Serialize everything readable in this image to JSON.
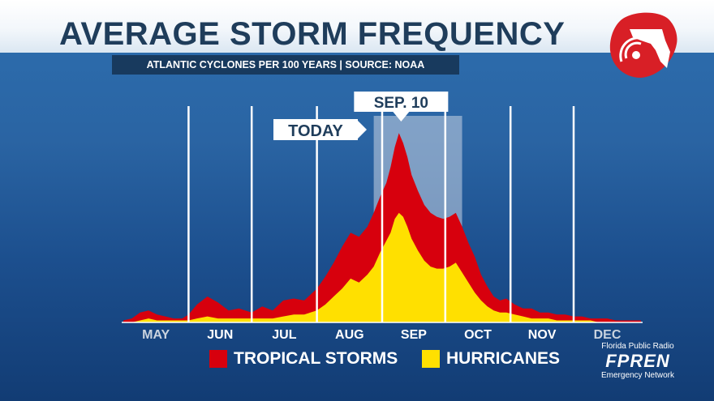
{
  "header": {
    "title": "AVERAGE STORM FREQUENCY",
    "subtitle": "ATLANTIC CYCLONES PER 100 YEARS | SOURCE: NOAA"
  },
  "colors": {
    "tropical_storms": "#d7000d",
    "hurricanes": "#ffe000",
    "highlight": "#c8d4e3"
  },
  "chart_data": {
    "type": "area",
    "title": "AVERAGE STORM FREQUENCY",
    "subtitle": "ATLANTIC CYCLONES PER 100 YEARS | SOURCE: NOAA",
    "xlabel": "",
    "ylabel": "",
    "months": [
      "MAY",
      "JUN",
      "JUL",
      "AUG",
      "SEP",
      "OCT",
      "NOV",
      "DEC"
    ],
    "x_unit": "day of season (0 = May 1)",
    "ylim": [
      0,
      100
    ],
    "x": [
      0,
      4,
      8,
      12,
      16,
      20,
      24,
      28,
      31,
      35,
      40,
      45,
      50,
      55,
      61,
      66,
      71,
      76,
      81,
      86,
      92,
      96,
      100,
      104,
      108,
      112,
      116,
      119,
      122,
      125,
      127,
      129,
      131,
      133,
      135,
      137,
      140,
      143,
      146,
      149,
      152,
      155,
      158,
      161,
      164,
      167,
      170,
      173,
      176,
      179,
      182,
      186,
      190,
      194,
      198,
      202,
      206,
      210,
      214,
      218,
      222,
      226,
      230,
      234,
      238,
      242,
      246
    ],
    "series": [
      {
        "name": "TROPICAL STORMS",
        "values": [
          1,
          2,
          5,
          6,
          4,
          3,
          2,
          2,
          4,
          9,
          13,
          10,
          6,
          7,
          5,
          8,
          6,
          11,
          12,
          11,
          17,
          23,
          30,
          38,
          45,
          43,
          48,
          55,
          63,
          70,
          78,
          88,
          95,
          90,
          83,
          74,
          66,
          59,
          55,
          53,
          52,
          53,
          55,
          48,
          40,
          33,
          24,
          18,
          13,
          11,
          12,
          9,
          7,
          7,
          5,
          5,
          4,
          4,
          3,
          3,
          2,
          2,
          2,
          1,
          1,
          1,
          1
        ]
      },
      {
        "name": "HURRICANES",
        "values": [
          0,
          0,
          1,
          2,
          1,
          1,
          1,
          1,
          1,
          2,
          3,
          2,
          2,
          2,
          2,
          2,
          2,
          3,
          4,
          4,
          6,
          9,
          13,
          17,
          22,
          20,
          24,
          28,
          35,
          41,
          45,
          52,
          55,
          53,
          48,
          42,
          36,
          31,
          28,
          27,
          27,
          28,
          30,
          25,
          20,
          15,
          11,
          8,
          6,
          5,
          5,
          4,
          3,
          2,
          2,
          2,
          1,
          1,
          1,
          1,
          1,
          0,
          0,
          0,
          0,
          0,
          0
        ]
      }
    ],
    "highlight_band": [
      119,
      161
    ],
    "annotations": [
      {
        "label": "SEP. 10",
        "x": 132,
        "kind": "peak-callout"
      },
      {
        "label": "TODAY",
        "x": 123,
        "kind": "arrow-callout"
      }
    ],
    "legend": [
      "TROPICAL STORMS",
      "HURRICANES"
    ],
    "legend_position": "bottom-center",
    "grid": "vertical month dividers"
  },
  "branding": {
    "network_top": "Florida Public Radio",
    "network_name": "FPREN",
    "network_bottom": "Emergency Network",
    "logo_icon": "florida-storm-icon"
  }
}
